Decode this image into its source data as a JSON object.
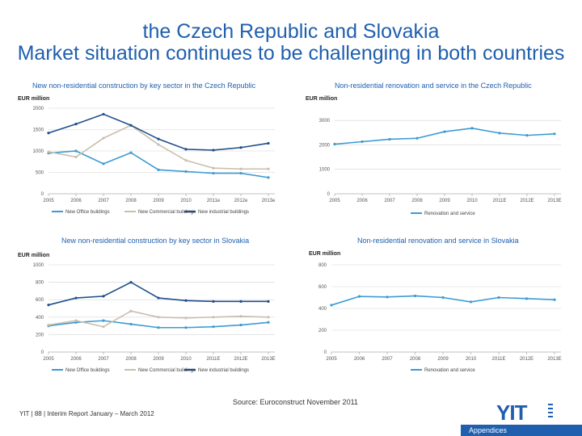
{
  "slide": {
    "title_line1": "the Czech Republic and Slovakia",
    "title_line2": "Market situation continues to be challenging in both countries",
    "source": "Source: Euroconstruct November 2011",
    "footer": "YIT  |  88  |  Interim Report January – March 2012",
    "logo_text": "YIT",
    "appendix_label": "Appendices",
    "accent_color": "#1f5fae"
  },
  "chart_data": [
    {
      "type": "line",
      "title": "New non-residential construction by key sector in the Czech Republic",
      "ylabel": "EUR million",
      "categories": [
        "2005",
        "2006",
        "2007",
        "2008",
        "2009",
        "2010",
        "2011e",
        "2012e",
        "2013e"
      ],
      "ylim": [
        0,
        2000
      ],
      "yticks": [
        0,
        500,
        1000,
        1500,
        2000
      ],
      "series": [
        {
          "name": "New Office buildings",
          "color": "#3b9bd3",
          "values": [
            950,
            1000,
            700,
            960,
            560,
            520,
            480,
            480,
            380
          ]
        },
        {
          "name": "New Commercial buildings",
          "color": "#c9bfae",
          "values": [
            980,
            860,
            1300,
            1600,
            1150,
            780,
            600,
            580,
            580
          ]
        },
        {
          "name": "New industrial buildings",
          "color": "#1f4e8c",
          "values": [
            1420,
            1630,
            1860,
            1600,
            1280,
            1040,
            1020,
            1080,
            1180
          ]
        }
      ],
      "legend": "bottom"
    },
    {
      "type": "line",
      "title": "Non-residential renovation and service in the Czech Republic",
      "ylabel": "EUR million",
      "categories": [
        "2005",
        "2006",
        "2007",
        "2008",
        "2009",
        "2010",
        "2011E",
        "2012E",
        "2013E"
      ],
      "ylim": [
        0,
        3500
      ],
      "yticks": [
        0,
        1000,
        2000,
        3000
      ],
      "series": [
        {
          "name": "Renovation and service",
          "color": "#3b9bd3",
          "values": [
            2030,
            2130,
            2230,
            2270,
            2540,
            2680,
            2480,
            2390,
            2450
          ]
        }
      ],
      "legend": "bottom"
    },
    {
      "type": "line",
      "title": "New non-residential construction by key sector in Slovakia",
      "ylabel": "EUR million",
      "categories": [
        "2005",
        "2006",
        "2007",
        "2008",
        "2009",
        "2010",
        "2011E",
        "2012E",
        "2013E"
      ],
      "ylim": [
        0,
        1000
      ],
      "yticks": [
        0,
        200,
        400,
        600,
        800,
        1000
      ],
      "series": [
        {
          "name": "New Office buildings",
          "color": "#3b9bd3",
          "values": [
            300,
            340,
            360,
            320,
            280,
            280,
            290,
            310,
            340
          ]
        },
        {
          "name": "New Commercial buildings",
          "color": "#c9bfae",
          "values": [
            310,
            360,
            290,
            470,
            400,
            390,
            400,
            410,
            400
          ]
        },
        {
          "name": "New industrial buildings",
          "color": "#1f4e8c",
          "values": [
            540,
            620,
            640,
            800,
            620,
            590,
            580,
            580,
            580
          ]
        }
      ],
      "legend": "bottom"
    },
    {
      "type": "line",
      "title": "Non-residential renovation and service in Slovakia",
      "ylabel": "EUR million",
      "categories": [
        "2005",
        "2006",
        "2007",
        "2008",
        "2009",
        "2010",
        "2011E",
        "2012E",
        "2013E"
      ],
      "ylim": [
        0,
        800
      ],
      "yticks": [
        0,
        200,
        400,
        600,
        800
      ],
      "series": [
        {
          "name": "Renovation and service",
          "color": "#3b9bd3",
          "values": [
            430,
            510,
            505,
            515,
            500,
            460,
            500,
            490,
            480
          ]
        }
      ],
      "legend": "bottom"
    }
  ]
}
